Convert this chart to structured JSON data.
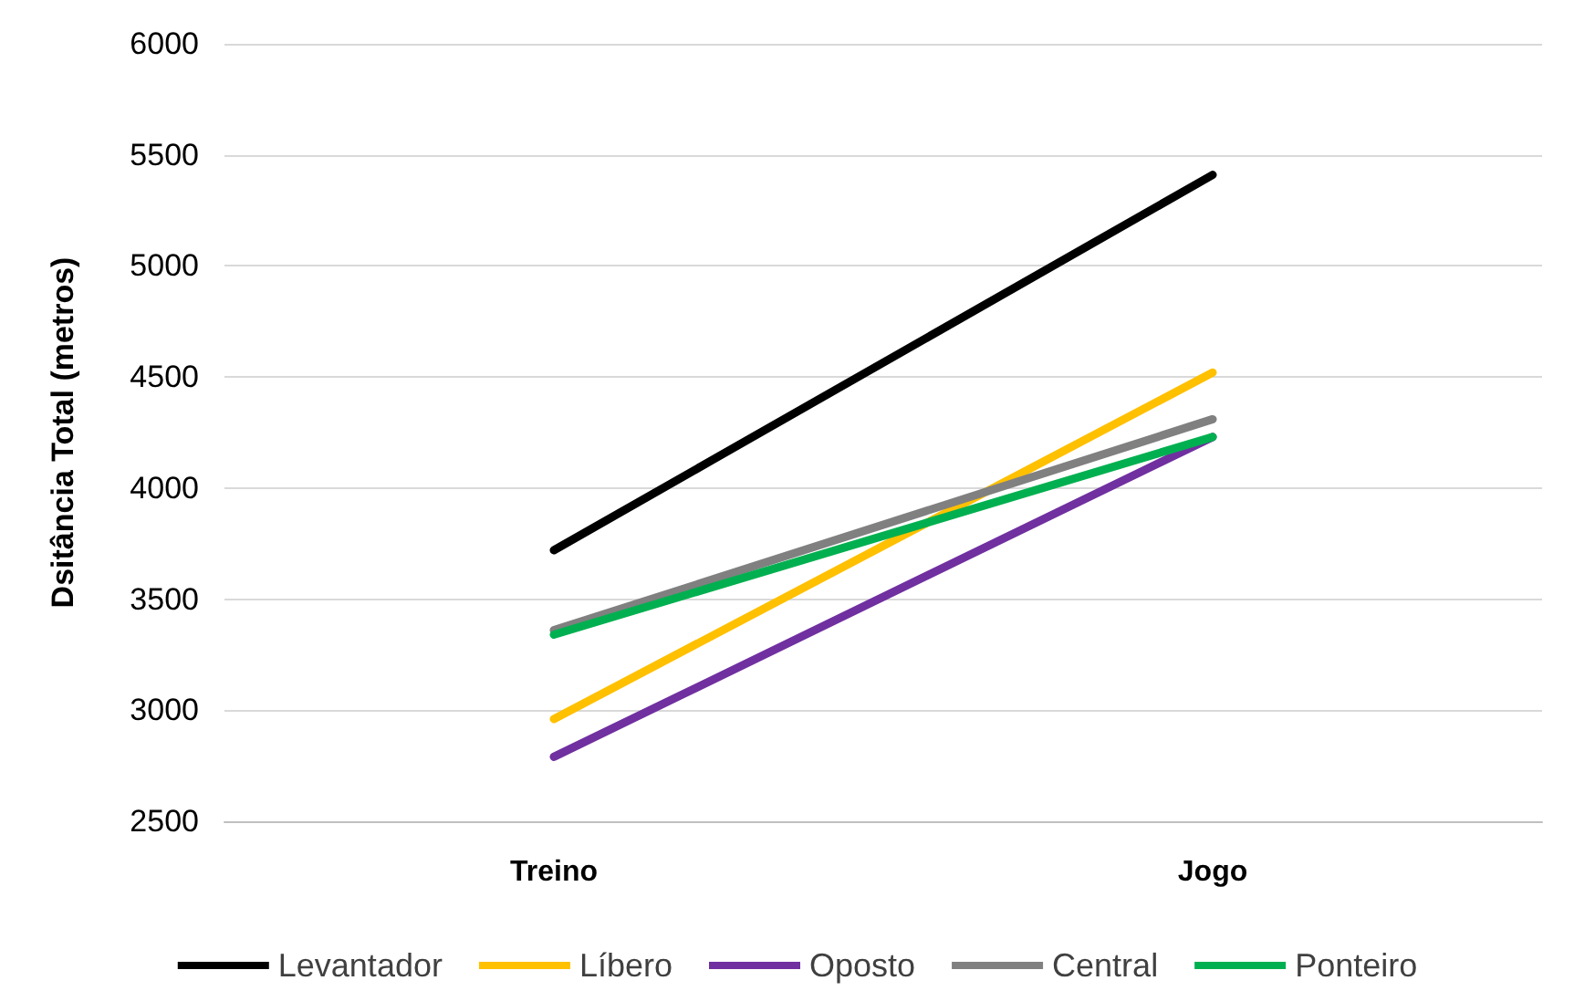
{
  "chart_data": {
    "type": "line",
    "ylabel": "Dsitância Total (metros)",
    "categories": [
      "Treino",
      "Jogo"
    ],
    "series": [
      {
        "name": "Levantador",
        "color": "#000000",
        "values": [
          3720,
          5410
        ]
      },
      {
        "name": "Líbero",
        "color": "#ffc000",
        "values": [
          2960,
          4520
        ]
      },
      {
        "name": "Oposto",
        "color": "#7030a0",
        "values": [
          2790,
          4230
        ]
      },
      {
        "name": "Central",
        "color": "#808080",
        "values": [
          3360,
          4310
        ]
      },
      {
        "name": "Ponteiro",
        "color": "#00b050",
        "values": [
          3340,
          4230
        ]
      }
    ],
    "ylim": [
      2500,
      6000
    ],
    "yticks": [
      2500,
      3000,
      3500,
      4000,
      4500,
      5000,
      5500,
      6000
    ],
    "grid": "y",
    "legend": "bottom",
    "marker": "none",
    "line_style": "solid"
  }
}
